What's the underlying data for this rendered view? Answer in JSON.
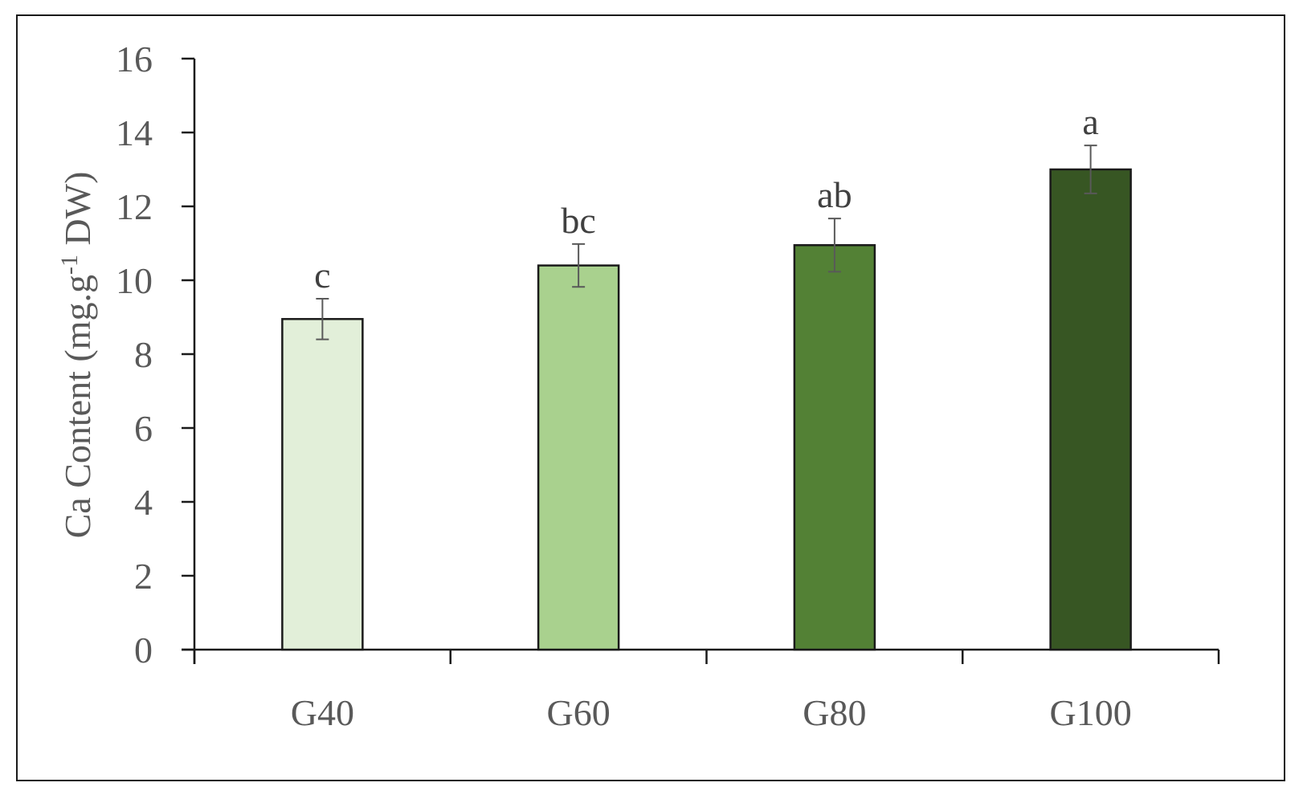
{
  "chart_data": {
    "type": "bar",
    "title": "",
    "xlabel": "",
    "ylabel": {
      "prefix": "Ca Content (mg.g",
      "superscript": "-1",
      "suffix": " DW)"
    },
    "ylim": [
      0,
      16
    ],
    "yticks": [
      "0",
      "2",
      "4",
      "6",
      "8",
      "10",
      "12",
      "14",
      "16"
    ],
    "categories": [
      "G40",
      "G60",
      "G80",
      "G100"
    ],
    "values": [
      8.95,
      10.4,
      10.95,
      13.0
    ],
    "errors": [
      0.55,
      0.58,
      0.72,
      0.65
    ],
    "significance_letters": [
      "c",
      "bc",
      "ab",
      "a"
    ],
    "bar_colors": [
      "#e2efd9",
      "#a9d18e",
      "#538135",
      "#375623"
    ],
    "bar_edge_color": "#1a1a1a",
    "grid": false,
    "legend": "none"
  }
}
